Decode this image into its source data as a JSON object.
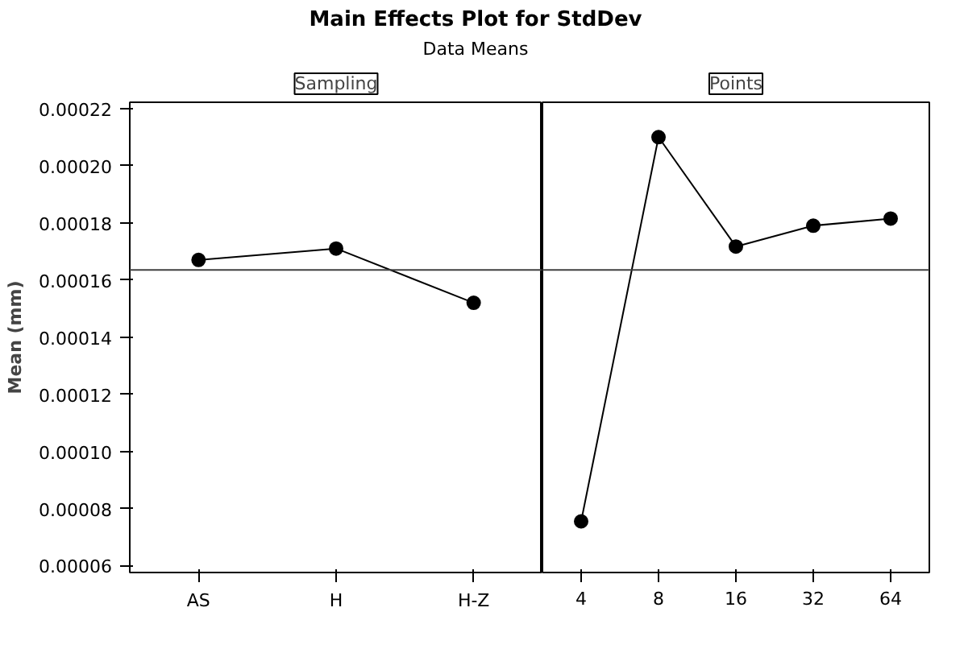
{
  "chart_data": [
    {
      "type": "line",
      "title": "Main Effects Plot for StdDev",
      "subtitle": "Data Means",
      "xlabel": "Sampling",
      "ylabel": "Mean (mm)",
      "categories": [
        "AS",
        "H",
        "H-Z"
      ],
      "series": [
        {
          "color": "#000000",
          "values": [
            0.000167,
            0.000171,
            0.000152
          ]
        }
      ],
      "ylim": [
        5.76e-05,
        0.0002222
      ],
      "yticks": [
        {
          "value": 6e-05,
          "label": "0.00006"
        },
        {
          "value": 8e-05,
          "label": "0.00008"
        },
        {
          "value": 0.0001,
          "label": "0.00010"
        },
        {
          "value": 0.00012,
          "label": "0.00012"
        },
        {
          "value": 0.00014,
          "label": "0.00014"
        },
        {
          "value": 0.00016,
          "label": "0.00016"
        },
        {
          "value": 0.00018,
          "label": "0.00018"
        },
        {
          "value": 0.0002,
          "label": "0.00020"
        },
        {
          "value": 0.00022,
          "label": "0.00022"
        }
      ],
      "ref_lines": [
        {
          "axis": "y",
          "value": 0.0001635,
          "color": "#404040"
        }
      ],
      "marker": "circle",
      "line_style": "solid",
      "grid": false
    },
    {
      "type": "line",
      "xlabel": "Points",
      "categories": [
        "4",
        "8",
        "16",
        "32",
        "64"
      ],
      "series": [
        {
          "color": "#000000",
          "values": [
            7.55e-05,
            0.00021,
            0.0001717,
            0.000179,
            0.0001815
          ]
        }
      ],
      "ylim": [
        5.76e-05,
        0.0002222
      ],
      "tick_labels": "x",
      "ref_lines": [
        {
          "axis": "y",
          "value": 0.0001635,
          "color": "#404040"
        }
      ],
      "marker": "circle",
      "line_style": "solid",
      "grid": false
    }
  ]
}
